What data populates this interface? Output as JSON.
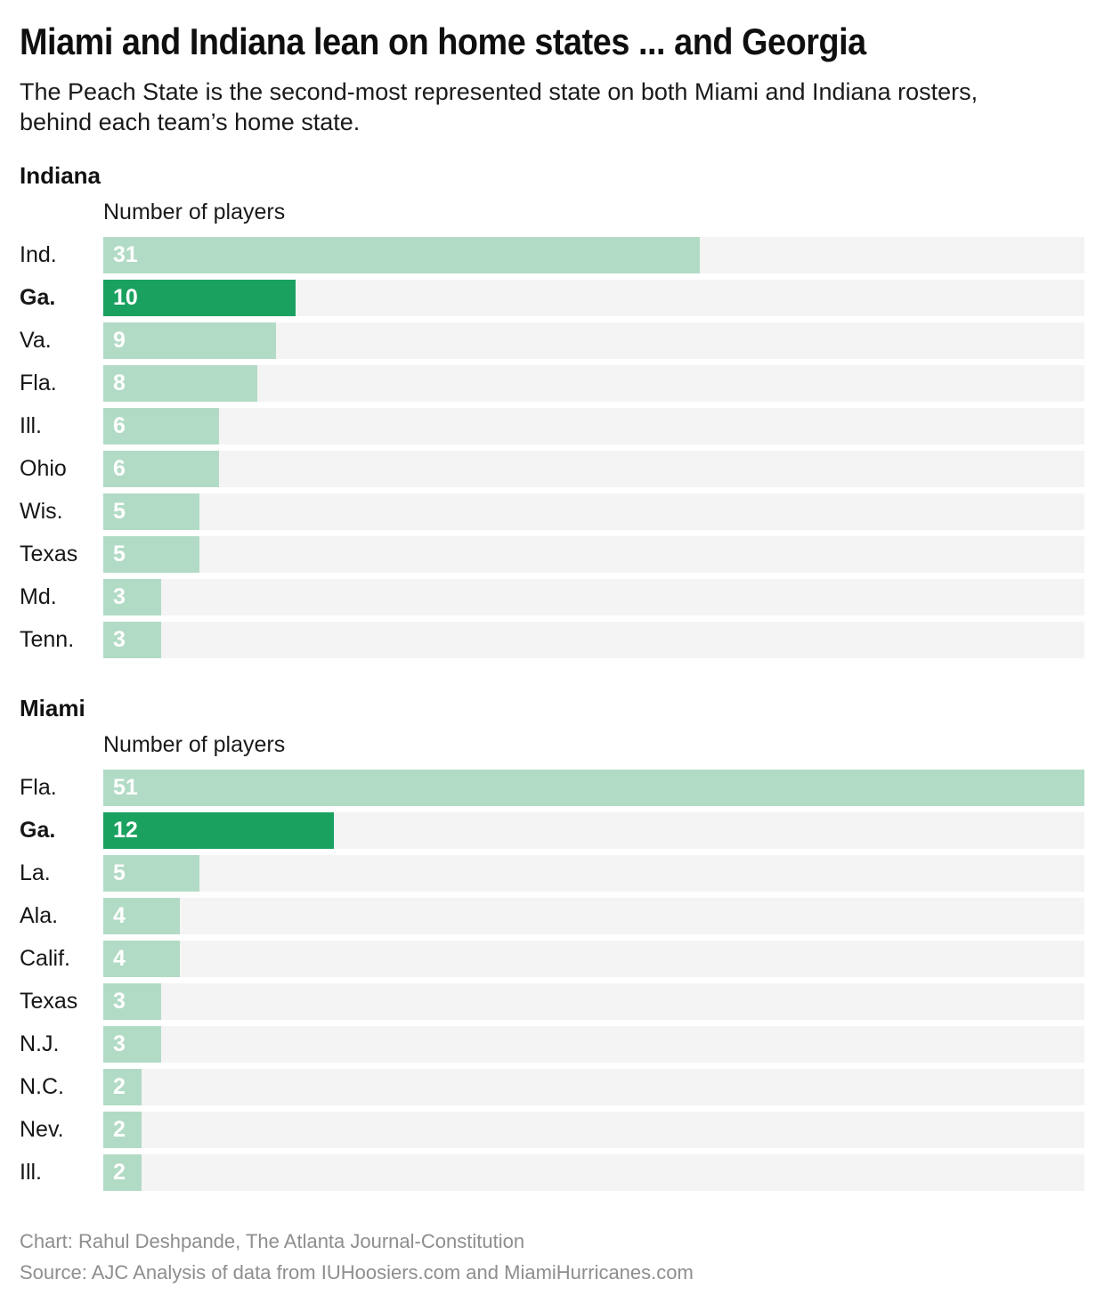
{
  "title": "Miami and Indiana lean on home states ... and Georgia",
  "subtitle": "The Peach State is the second-most represented state on both Miami and Indiana rosters, behind each team’s home state.",
  "colors": {
    "bar_light": "#b2dbc5",
    "bar_highlight": "#1aa160",
    "track": "#f4f4f4",
    "value_label": "#ffffff",
    "footer_text": "#8e8e8e"
  },
  "chart_data": [
    {
      "type": "bar",
      "orientation": "horizontal",
      "title": "Indiana",
      "xlabel": "Number of players",
      "xlim": [
        0,
        51
      ],
      "grid": false,
      "legend": false,
      "categories": [
        "Ind.",
        "Ga.",
        "Va.",
        "Fla.",
        "Ill.",
        "Ohio",
        "Wis.",
        "Texas",
        "Md.",
        "Tenn."
      ],
      "values": [
        31,
        10,
        9,
        8,
        6,
        6,
        5,
        5,
        3,
        3
      ],
      "highlighted_category": "Ga."
    },
    {
      "type": "bar",
      "orientation": "horizontal",
      "title": "Miami",
      "xlabel": "Number of players",
      "xlim": [
        0,
        51
      ],
      "grid": false,
      "legend": false,
      "categories": [
        "Fla.",
        "Ga.",
        "La.",
        "Ala.",
        "Calif.",
        "Texas",
        "N.J.",
        "N.C.",
        "Nev.",
        "Ill."
      ],
      "values": [
        51,
        12,
        5,
        4,
        4,
        3,
        3,
        2,
        2,
        2
      ],
      "highlighted_category": "Ga."
    }
  ],
  "footer": {
    "credit": "Chart: Rahul Deshpande, The Atlanta Journal-Constitution",
    "source": "Source: AJC Analysis of data from IUHoosiers.com and MiamiHurricanes.com"
  }
}
